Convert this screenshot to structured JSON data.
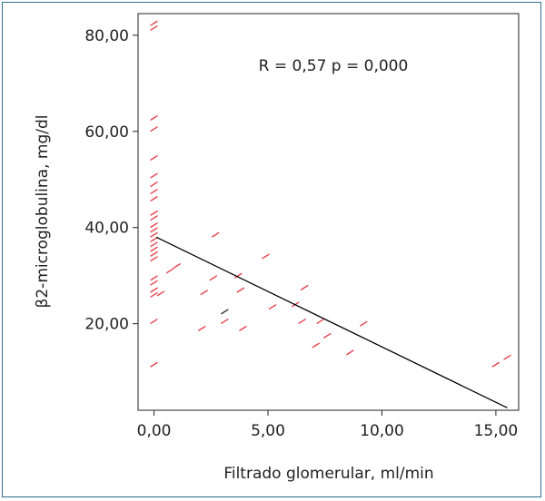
{
  "chart_data": {
    "type": "scatter",
    "xlabel": "Filtrado glomerular, ml/min",
    "ylabel": "β2-microglobulina, mg/dl",
    "annotation": "R = 0,57 p = 0,000",
    "xlim": [
      -0.7,
      16.0
    ],
    "ylim": [
      2.0,
      84.5
    ],
    "x_ticks": [
      0,
      5,
      10,
      15
    ],
    "x_tick_labels": [
      "0,00",
      "5,00",
      "10,00",
      "15,00"
    ],
    "y_ticks": [
      20,
      40,
      60,
      80
    ],
    "y_tick_labels": [
      "20,00",
      "40,00",
      "60,00",
      "80,00"
    ],
    "grid": false,
    "marker_color": "#e8414b",
    "highlight_color": "#333333",
    "line_color": "#000000",
    "fit_line": {
      "x": [
        0.1,
        15.5
      ],
      "y": [
        38.0,
        2.5
      ]
    },
    "points": [
      {
        "x": 0.0,
        "y": 82.5
      },
      {
        "x": 0.0,
        "y": 81.5
      },
      {
        "x": 0.0,
        "y": 62.8
      },
      {
        "x": 0.0,
        "y": 60.5
      },
      {
        "x": 0.0,
        "y": 54.5
      },
      {
        "x": 0.0,
        "y": 50.8
      },
      {
        "x": 0.0,
        "y": 49.0
      },
      {
        "x": 0.0,
        "y": 47.5
      },
      {
        "x": 0.0,
        "y": 46.0
      },
      {
        "x": 0.0,
        "y": 43.0
      },
      {
        "x": 0.0,
        "y": 42.0
      },
      {
        "x": 0.0,
        "y": 40.5
      },
      {
        "x": 0.0,
        "y": 39.5
      },
      {
        "x": 0.0,
        "y": 38.5
      },
      {
        "x": 0.0,
        "y": 37.5
      },
      {
        "x": 0.0,
        "y": 36.5
      },
      {
        "x": 0.0,
        "y": 35.5
      },
      {
        "x": 0.0,
        "y": 34.5
      },
      {
        "x": 0.0,
        "y": 33.5
      },
      {
        "x": 0.0,
        "y": 29.5
      },
      {
        "x": 0.0,
        "y": 28.5
      },
      {
        "x": 0.0,
        "y": 27.0
      },
      {
        "x": 0.0,
        "y": 26.0
      },
      {
        "x": 0.0,
        "y": 20.5
      },
      {
        "x": 0.0,
        "y": 11.5
      },
      {
        "x": 0.3,
        "y": 26.3
      },
      {
        "x": 0.7,
        "y": 31.0
      },
      {
        "x": 1.0,
        "y": 32.0
      },
      {
        "x": 2.1,
        "y": 19.0
      },
      {
        "x": 2.2,
        "y": 26.5
      },
      {
        "x": 2.6,
        "y": 29.5
      },
      {
        "x": 2.7,
        "y": 38.5
      },
      {
        "x": 3.1,
        "y": 20.5
      },
      {
        "x": 3.7,
        "y": 30.0
      },
      {
        "x": 3.8,
        "y": 27.0
      },
      {
        "x": 3.9,
        "y": 19.0
      },
      {
        "x": 4.9,
        "y": 34.0
      },
      {
        "x": 5.2,
        "y": 23.5
      },
      {
        "x": 6.2,
        "y": 24.0
      },
      {
        "x": 6.5,
        "y": 20.5
      },
      {
        "x": 6.6,
        "y": 27.5
      },
      {
        "x": 7.1,
        "y": 15.5
      },
      {
        "x": 7.3,
        "y": 20.5
      },
      {
        "x": 7.6,
        "y": 17.5
      },
      {
        "x": 8.6,
        "y": 14.0
      },
      {
        "x": 9.2,
        "y": 20.0
      },
      {
        "x": 15.0,
        "y": 11.5
      },
      {
        "x": 15.5,
        "y": 13.0
      }
    ],
    "highlight_points": [
      {
        "x": 3.1,
        "y": 22.5
      }
    ]
  }
}
